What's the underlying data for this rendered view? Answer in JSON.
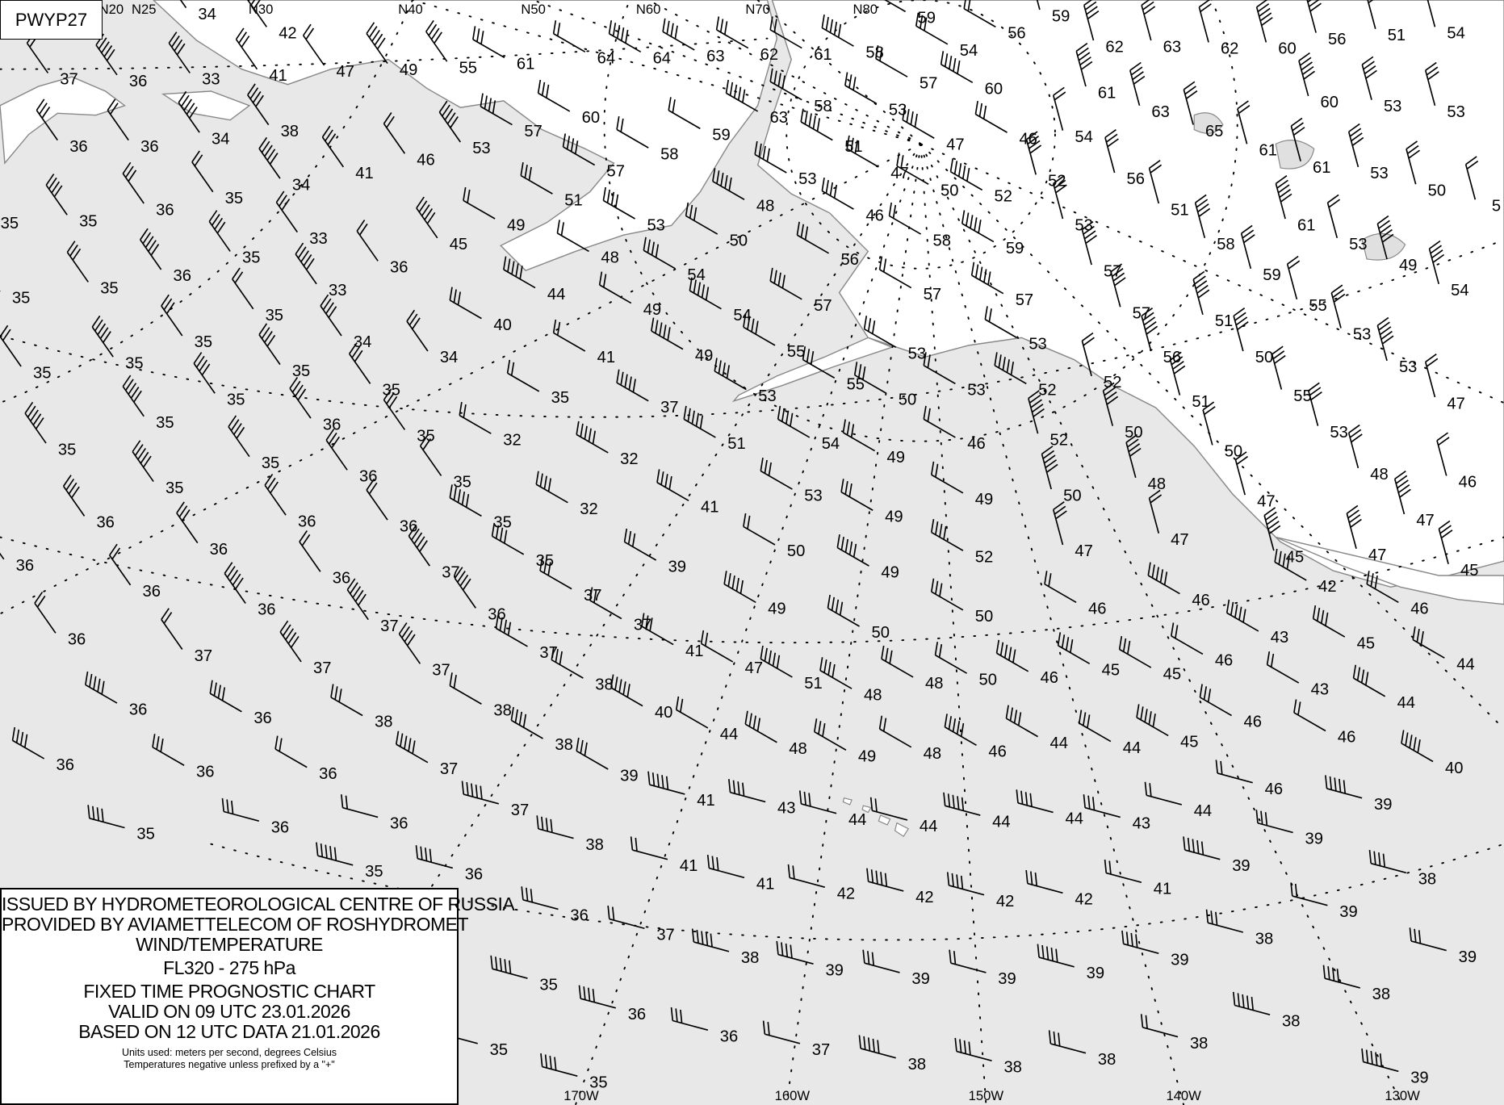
{
  "chart_id": "PWYP27",
  "legend": {
    "line1": "ISSUED BY HYDROMETEOROLOGICAL CENTRE OF RUSSIA",
    "line2": "PROVIDED BY AVIAMETTELECOM OF ROSHYDROMET",
    "line3": "WIND/TEMPERATURE",
    "level": "FL320 - 275 hPa",
    "type": "FIXED TIME PROGNOSTIC CHART",
    "valid": "VALID ON 09 UTC 23.01.2026",
    "based": "BASED ON 12 UTC DATA 21.01.2026",
    "units": "Units used: meters per second, degrees Celsius",
    "note": "Temperatures negative unless prefixed by a \"+\""
  },
  "colors": {
    "sea": "#e8e8e8",
    "land": "#ffffff",
    "coastline": "#888888",
    "text": "#000000"
  },
  "latitude_labels": [
    "N20",
    "N25",
    "N30",
    "N40",
    "N50",
    "N60",
    "N70",
    "N80"
  ],
  "longitude_labels": [
    "170W",
    "160W",
    "150W",
    "140W",
    "130W"
  ],
  "temperatures": [
    "37",
    "36",
    "33",
    "41",
    "47",
    "49",
    "55",
    "61",
    "64",
    "64",
    "63",
    "62",
    "61",
    "58",
    "59",
    "54",
    "56",
    "59",
    "62",
    "63",
    "62",
    "60",
    "56",
    "51",
    "54",
    "34",
    "42",
    "36",
    "36",
    "34",
    "38",
    "41",
    "46",
    "53",
    "57",
    "60",
    "59",
    "63",
    "58",
    "53",
    "57",
    "60",
    "47",
    "46",
    "54",
    "61",
    "63",
    "65",
    "61",
    "60",
    "53",
    "53",
    "58",
    "51",
    "53",
    "47",
    "50",
    "52",
    "52",
    "56",
    "51",
    "61",
    "53",
    "50",
    "5",
    "35",
    "35",
    "36",
    "35",
    "34",
    "57",
    "51",
    "49",
    "48",
    "46",
    "53",
    "58",
    "59",
    "58",
    "61",
    "53",
    "49",
    "54",
    "35",
    "35",
    "36",
    "35",
    "33",
    "36",
    "45",
    "53",
    "50",
    "48",
    "44",
    "54",
    "56",
    "57",
    "57",
    "57",
    "59",
    "55",
    "51",
    "57",
    "35",
    "35",
    "33",
    "34",
    "40",
    "49",
    "54",
    "57",
    "53",
    "53",
    "56",
    "50",
    "53",
    "35",
    "35",
    "35",
    "34",
    "41",
    "49",
    "55",
    "55",
    "52",
    "53",
    "35",
    "35",
    "35",
    "37",
    "53",
    "50",
    "53",
    "52",
    "51",
    "55",
    "47",
    "35",
    "36",
    "35",
    "32",
    "51",
    "54",
    "49",
    "46",
    "52",
    "50",
    "53",
    "50",
    "35",
    "35",
    "36",
    "35",
    "32",
    "32",
    "53",
    "49",
    "50",
    "48",
    "48",
    "46",
    "35",
    "36",
    "36",
    "36",
    "35",
    "41",
    "49",
    "47",
    "47",
    "36",
    "36",
    "36",
    "37",
    "35",
    "39",
    "50",
    "49",
    "52",
    "47",
    "47",
    "45",
    "47",
    "45",
    "36",
    "36",
    "36",
    "37",
    "37",
    "49",
    "50",
    "50",
    "46",
    "46",
    "42",
    "46",
    "36",
    "37",
    "37",
    "41",
    "46",
    "43",
    "45",
    "44",
    "37",
    "37",
    "37",
    "38",
    "47",
    "51",
    "48",
    "48",
    "50",
    "46",
    "45",
    "45",
    "43",
    "36",
    "36",
    "38",
    "38",
    "40",
    "44",
    "46",
    "44",
    "45",
    "48",
    "49",
    "48",
    "46",
    "44",
    "44",
    "46",
    "40",
    "36",
    "36",
    "36",
    "37",
    "38",
    "39",
    "46",
    "41",
    "43",
    "44",
    "44",
    "44",
    "44",
    "43",
    "44",
    "39",
    "35",
    "36",
    "36",
    "37",
    "38",
    "39",
    "41",
    "35",
    "36",
    "41",
    "42",
    "42",
    "42",
    "42",
    "41",
    "39",
    "38",
    "36",
    "37",
    "38",
    "39",
    "39",
    "39",
    "39",
    "39",
    "38",
    "39",
    "35",
    "36",
    "36",
    "37",
    "38",
    "38",
    "38",
    "38",
    "38",
    "38",
    "39",
    "35",
    "39",
    "35"
  ]
}
